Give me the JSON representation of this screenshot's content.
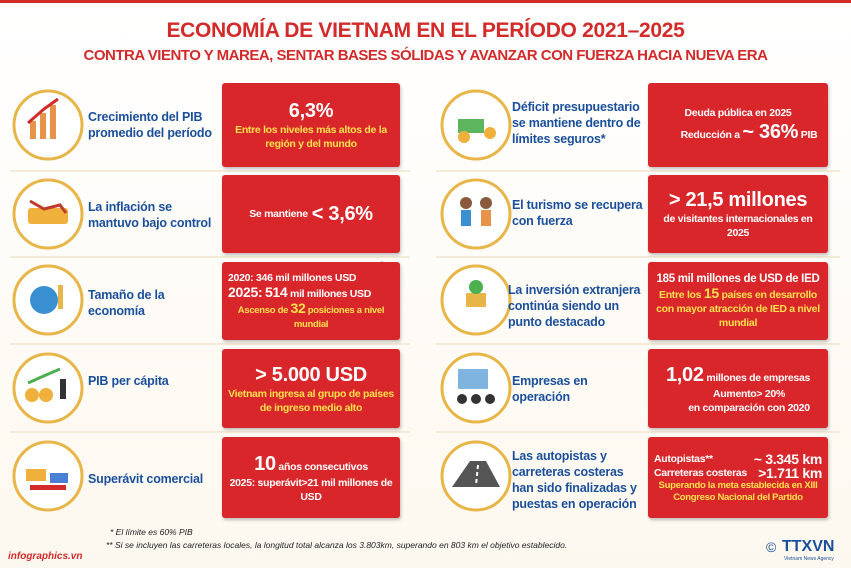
{
  "header": {
    "title": "ECONOMÍA DE VIETNAM EN EL PERÍODO 2021–2025",
    "subtitle": "CONTRA VIENTO Y MAREA, SENTAR BASES SÓLIDAS Y AVANZAR CON FUERZA HACIA NUEVA ERA"
  },
  "left": [
    {
      "label": "Crecimiento del PIB promedio del período",
      "box": [
        "6,3%",
        "Entre los niveles más altos de la región y del mundo"
      ]
    },
    {
      "label": "La inflación se mantuvo bajo control",
      "box": [
        "Se mantiene",
        "< 3,6%"
      ]
    },
    {
      "label": "Tamaño de la economía",
      "box": [
        "2020:",
        "346 mil millones USD",
        "2025:",
        "514",
        "mil millones USD",
        "Ascenso de",
        "32",
        "posiciones a nivel mundial"
      ]
    },
    {
      "label": "PIB per cápita",
      "box": [
        "> 5.000 USD",
        "Vietnam ingresa al grupo de países de ingreso medio alto"
      ]
    },
    {
      "label": "Superávit comercial",
      "box": [
        "10",
        "años consecutivos",
        "2025: superávit>21 mil millones de USD"
      ]
    }
  ],
  "right": [
    {
      "label": "Déficit presupuestario se mantiene dentro de límites seguros*",
      "box": [
        "Deuda pública en 2025",
        "Reducción a",
        "~ 36%",
        "PIB"
      ]
    },
    {
      "label": "El turismo se recupera con fuerza",
      "box": [
        "> 21,5 millones",
        "de visitantes internacionales en 2025"
      ]
    },
    {
      "label": "La inversión extranjera continúa siendo un punto destacado",
      "box": [
        "185 mil millones de USD de IED",
        "Entre los",
        "15",
        "países en desarrollo con mayor atracción de IED a nivel mundial"
      ]
    },
    {
      "label": "Empresas en operación",
      "box": [
        "1,02",
        "millones de empresas",
        "Aumento> 20%",
        "en comparación con 2020"
      ]
    },
    {
      "label": "Las autopistas y carreteras costeras han sido finalizadas y puestas en operación",
      "box": [
        "Autopistas**",
        "~ 3.345 km",
        "Carreteras costeras",
        ">1.711 km",
        "Superando la meta establecida en XIII Congreso Nacional del Partido"
      ]
    }
  ],
  "footnotes": [
    "* El límite es 60% PIB",
    "** Si se incluyen las carreteras locales, la longitud total alcanza los 3.803km, superando en 803 km el objetivo establecido."
  ],
  "footer": {
    "site": "infographics.vn",
    "copyright": "©",
    "agency": "TTXVN",
    "agency_sub": "Vietnam News Agency"
  }
}
